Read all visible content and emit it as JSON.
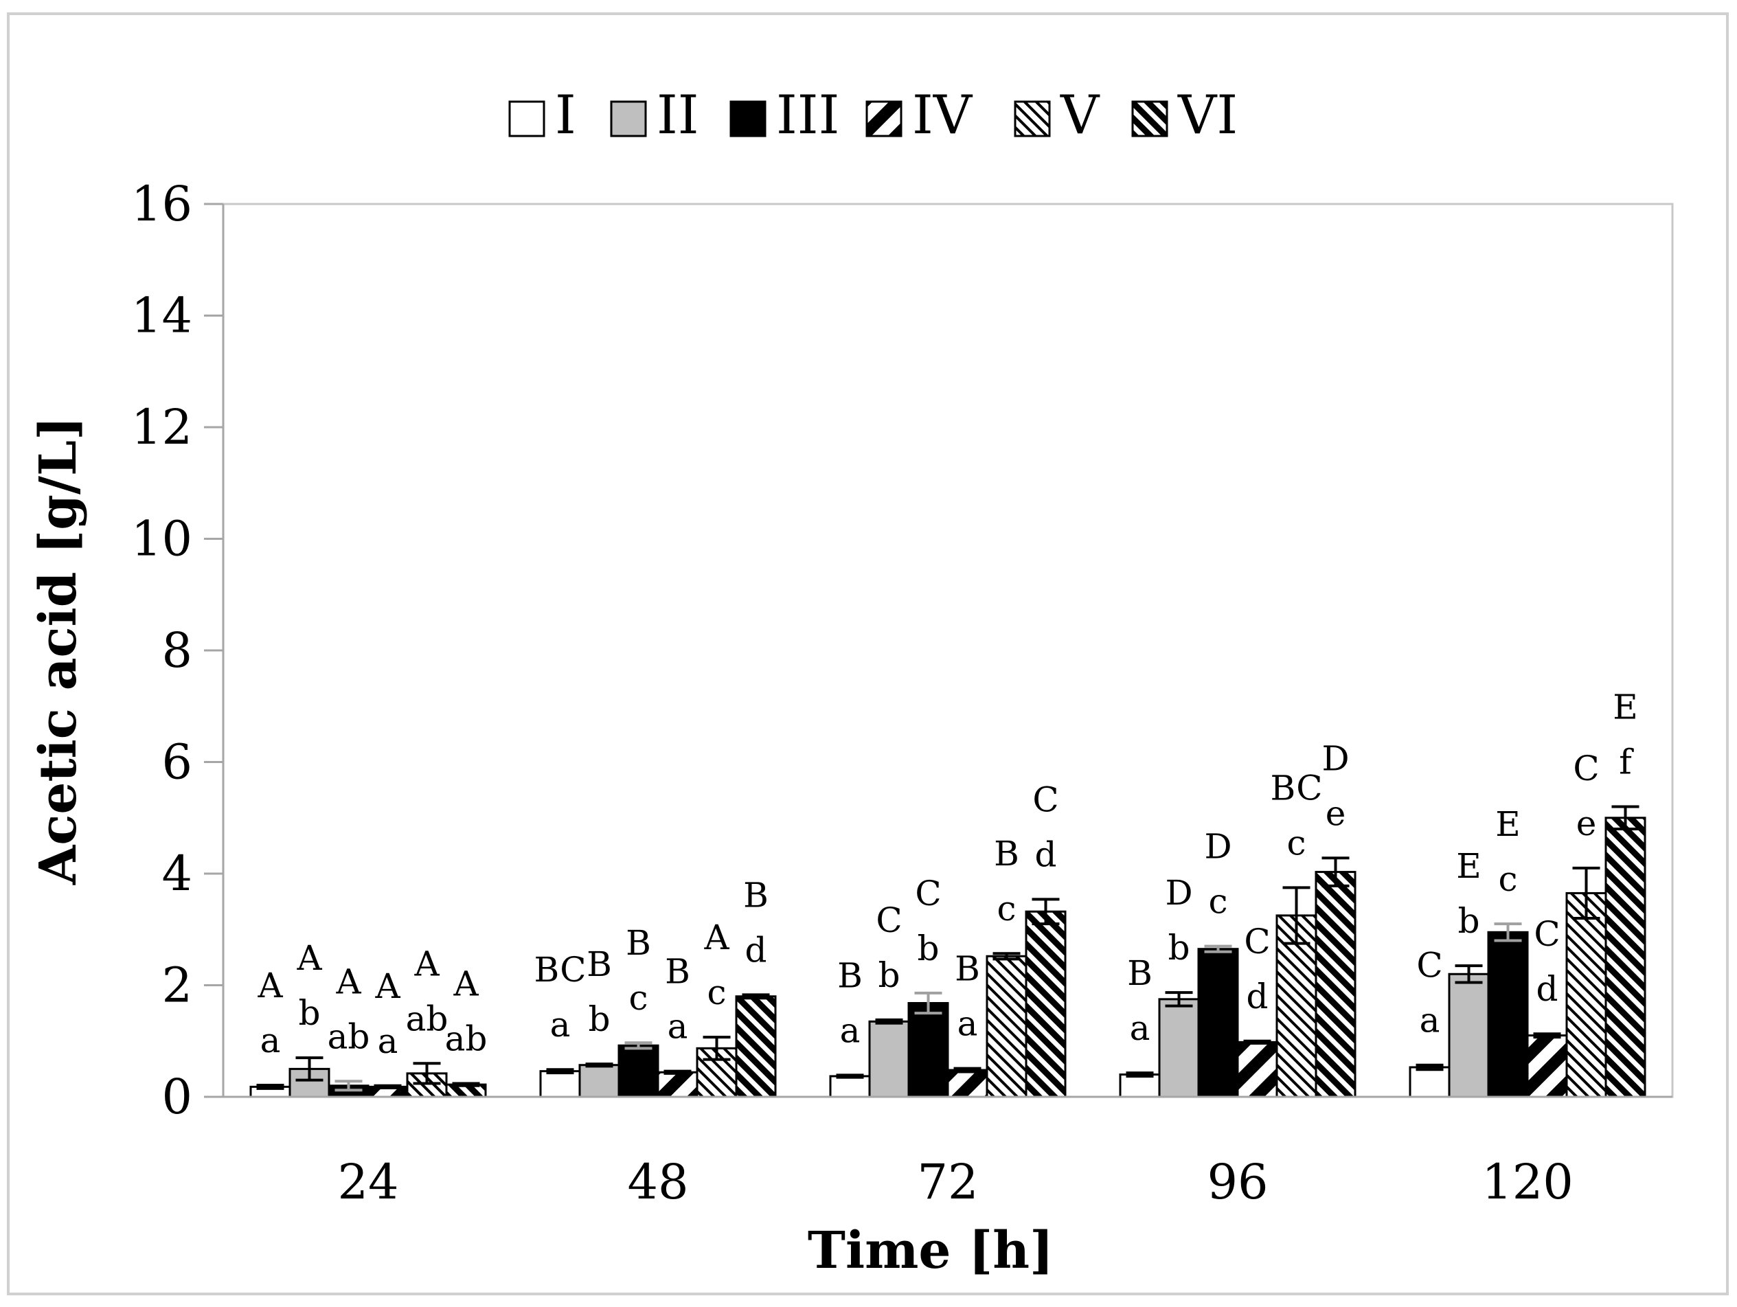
{
  "chart_data": {
    "type": "bar",
    "title": "",
    "xlabel": "Time [h]",
    "ylabel": "Acetic acid [g/L]",
    "ylim": [
      0,
      16
    ],
    "yticks": [
      0,
      2,
      4,
      6,
      8,
      10,
      12,
      14,
      16
    ],
    "grid": false,
    "legend_position": "top",
    "categories": [
      "24",
      "48",
      "72",
      "96",
      "120"
    ],
    "series": [
      {
        "name": "I",
        "pattern": "open",
        "values": [
          0.18,
          0.46,
          0.37,
          0.4,
          0.53
        ],
        "errors": [
          0.03,
          0.03,
          0.02,
          0.03,
          0.04
        ],
        "letters_upper": [
          "A",
          "BC",
          "B",
          "B",
          "C"
        ],
        "letters_lower": [
          "a",
          "a",
          "a",
          "a",
          "a"
        ]
      },
      {
        "name": "II",
        "pattern": "gray",
        "values": [
          0.5,
          0.57,
          1.35,
          1.75,
          2.2
        ],
        "errors": [
          0.2,
          0.02,
          0.03,
          0.12,
          0.15
        ],
        "letters_upper": [
          "A",
          "B",
          "C",
          "D",
          "E"
        ],
        "letters_lower": [
          "b",
          "b",
          "b",
          "b",
          "b"
        ]
      },
      {
        "name": "III",
        "pattern": "black",
        "values": [
          0.2,
          0.92,
          1.68,
          2.65,
          2.95
        ],
        "errors": [
          0.08,
          0.05,
          0.18,
          0.05,
          0.15
        ],
        "letters_upper": [
          "A",
          "B",
          "C",
          "D",
          "E"
        ],
        "letters_lower": [
          "ab",
          "c",
          "b",
          "c",
          "c"
        ]
      },
      {
        "name": "IV",
        "pattern": "diag-wide",
        "values": [
          0.18,
          0.44,
          0.48,
          0.98,
          1.1
        ],
        "errors": [
          0.02,
          0.02,
          0.03,
          0.02,
          0.03
        ],
        "letters_upper": [
          "A",
          "B",
          "B",
          "C",
          "C"
        ],
        "letters_lower": [
          "a",
          "a",
          "a",
          "d",
          "d"
        ]
      },
      {
        "name": "V",
        "pattern": "diag-light",
        "values": [
          0.42,
          0.87,
          2.52,
          3.25,
          3.65
        ],
        "errors": [
          0.18,
          0.2,
          0.05,
          0.5,
          0.45
        ],
        "letters_upper": [
          "A",
          "A",
          "B",
          "BC",
          "C"
        ],
        "letters_lower": [
          "ab",
          "c",
          "c",
          "c",
          "e"
        ]
      },
      {
        "name": "VI",
        "pattern": "diag-dense",
        "values": [
          0.22,
          1.8,
          3.32,
          4.03,
          5.0
        ],
        "errors": [
          0.02,
          0.03,
          0.22,
          0.25,
          0.2
        ],
        "letters_upper": [
          "A",
          "B",
          "C",
          "D",
          "E"
        ],
        "letters_lower": [
          "ab",
          "d",
          "d",
          "e",
          "f"
        ]
      }
    ]
  }
}
